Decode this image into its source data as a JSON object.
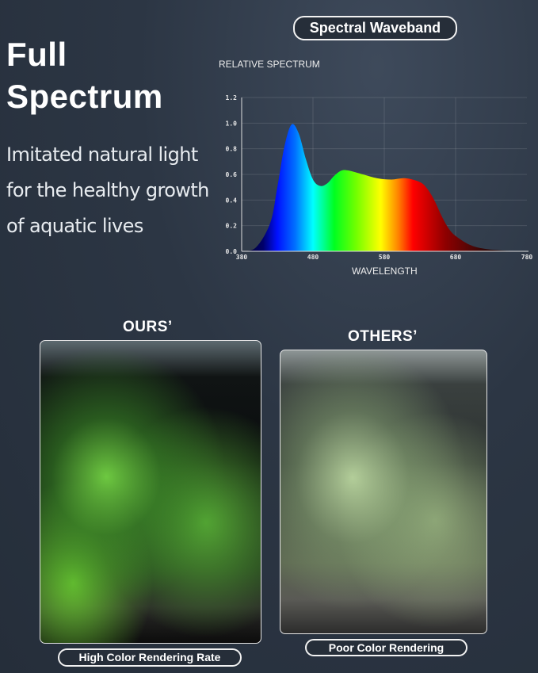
{
  "header": {
    "title_line1": "Full",
    "title_line2": "Spectrum",
    "subtitle_lines": [
      "Imitated natural light",
      "for the healthy growth",
      "of aquatic lives"
    ],
    "badge": "Spectral Waveband"
  },
  "chart_data": {
    "type": "area",
    "title": "",
    "ylabel": "RELATIVE SPECTRUM",
    "xlabel": "WAVELENGTH",
    "xlim": [
      380,
      780
    ],
    "ylim": [
      0,
      1.2
    ],
    "xticks": [
      "380",
      "480",
      "580",
      "680",
      "780"
    ],
    "yticks": [
      "0.0",
      "0.2",
      "0.4",
      "0.6",
      "0.8",
      "1.0",
      "1.2"
    ],
    "grid": true,
    "x": [
      380,
      400,
      420,
      430,
      440,
      450,
      460,
      470,
      480,
      490,
      500,
      510,
      520,
      530,
      550,
      570,
      590,
      610,
      630,
      640,
      650,
      660,
      670,
      680,
      700,
      720,
      750,
      780
    ],
    "y": [
      0.0,
      0.03,
      0.22,
      0.5,
      0.82,
      0.99,
      0.92,
      0.72,
      0.56,
      0.51,
      0.53,
      0.59,
      0.63,
      0.63,
      0.6,
      0.57,
      0.56,
      0.57,
      0.54,
      0.49,
      0.4,
      0.28,
      0.18,
      0.12,
      0.05,
      0.02,
      0.005,
      0.0
    ]
  },
  "comparison": {
    "ours": {
      "heading": "OURS’",
      "caption": "High Color Rendering Rate"
    },
    "others": {
      "heading": "OTHERS’",
      "caption": "Poor Color Rendering"
    }
  },
  "colors": {
    "background": "#2c3644",
    "pill_fill": "#262e39"
  }
}
